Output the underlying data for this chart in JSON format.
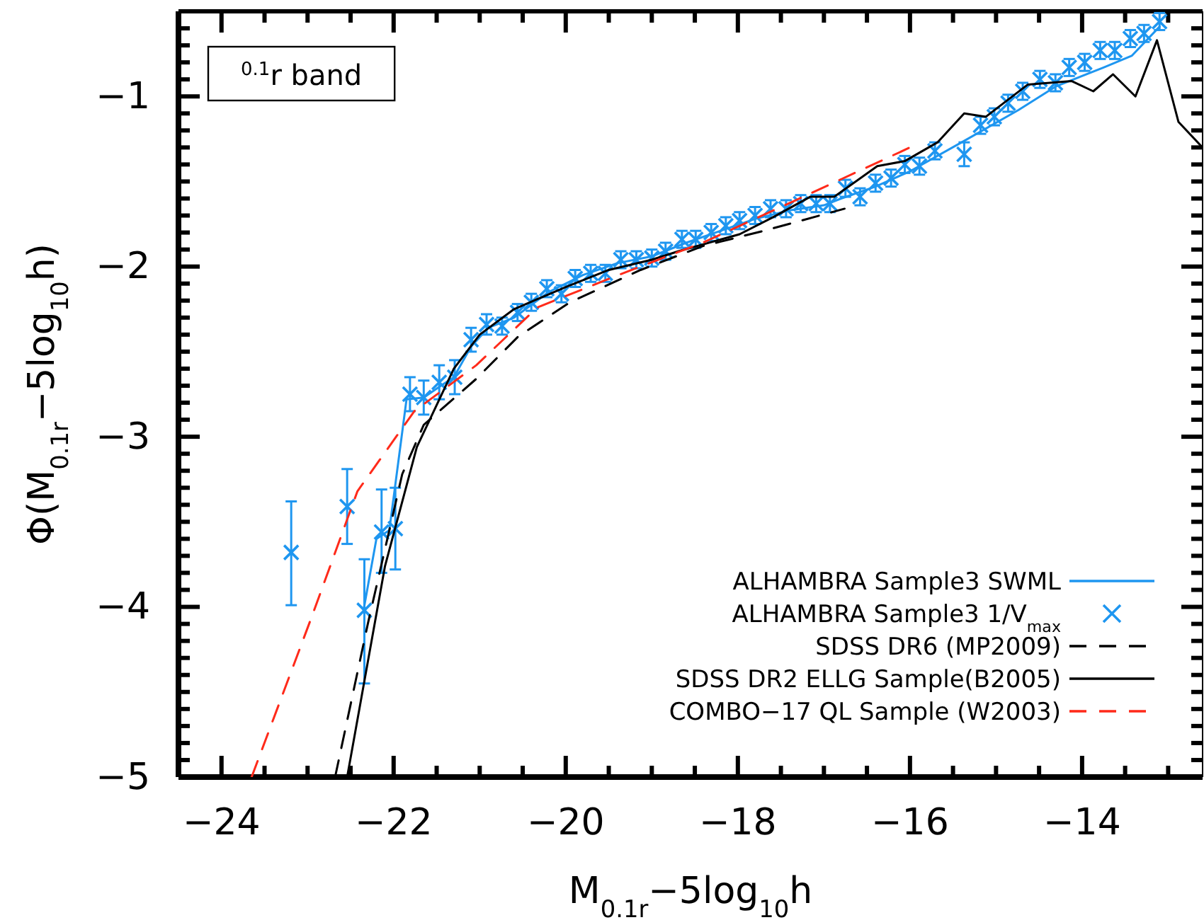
{
  "chart_data": {
    "type": "line",
    "xlabel": "M$_{0.1r}$−5log$_{10}$h",
    "ylabel": "Φ(M$_{0.1r}$−5log$_{10}$h)",
    "annotations": [
      "$^{0.1}$r band"
    ],
    "xlim": [
      -24.5,
      -12.6
    ],
    "ylim": [
      -5,
      -0.5
    ],
    "xticks": [
      {
        "value": -24.5,
        "label": null
      },
      -24,
      {
        "value": -23.5,
        "label": null
      },
      {
        "value": -23,
        "label": null
      },
      {
        "value": -22.5,
        "label": null
      },
      -22,
      {
        "value": -21.5,
        "label": null
      },
      {
        "value": -21,
        "label": null
      },
      {
        "value": -20.5,
        "label": null
      },
      -20,
      {
        "value": -19.5,
        "label": null
      },
      {
        "value": -19,
        "label": null
      },
      {
        "value": -18.5,
        "label": null
      },
      -18,
      {
        "value": -17.5,
        "label": null
      },
      {
        "value": -17,
        "label": null
      },
      {
        "value": -16.5,
        "label": null
      },
      -16,
      {
        "value": -15.5,
        "label": null
      },
      {
        "value": -15,
        "label": null
      },
      {
        "value": -14.5,
        "label": null
      },
      -14,
      {
        "value": -13.5,
        "label": null
      },
      {
        "value": -13,
        "label": null
      }
    ],
    "yticks": [
      -5,
      {
        "value": -4.9,
        "label": null
      },
      {
        "value": -4.8,
        "label": null
      },
      {
        "value": -4.7,
        "label": null
      },
      {
        "value": -4.6,
        "label": null
      },
      {
        "value": -4.5,
        "label": null
      },
      {
        "value": -4.4,
        "label": null
      },
      {
        "value": -4.3,
        "label": null
      },
      {
        "value": -4.2,
        "label": null
      },
      {
        "value": -4.1,
        "label": null
      },
      -4,
      {
        "value": -3.9,
        "label": null
      },
      {
        "value": -3.8,
        "label": null
      },
      {
        "value": -3.7,
        "label": null
      },
      {
        "value": -3.6,
        "label": null
      },
      {
        "value": -3.5,
        "label": null
      },
      {
        "value": -3.4,
        "label": null
      },
      {
        "value": -3.3,
        "label": null
      },
      {
        "value": -3.2,
        "label": null
      },
      {
        "value": -3.1,
        "label": null
      },
      -3,
      {
        "value": -2.9,
        "label": null
      },
      {
        "value": -2.8,
        "label": null
      },
      {
        "value": -2.7,
        "label": null
      },
      {
        "value": -2.6,
        "label": null
      },
      {
        "value": -2.5,
        "label": null
      },
      {
        "value": -2.4,
        "label": null
      },
      {
        "value": -2.3,
        "label": null
      },
      {
        "value": -2.2,
        "label": null
      },
      {
        "value": -2.1,
        "label": null
      },
      -2,
      {
        "value": -1.9,
        "label": null
      },
      {
        "value": -1.8,
        "label": null
      },
      {
        "value": -1.7,
        "label": null
      },
      {
        "value": -1.6,
        "label": null
      },
      {
        "value": -1.5,
        "label": null
      },
      {
        "value": -1.4,
        "label": null
      },
      {
        "value": -1.3,
        "label": null
      },
      {
        "value": -1.2,
        "label": null
      },
      {
        "value": -1.1,
        "label": null
      },
      -1,
      {
        "value": -0.9,
        "label": null
      },
      {
        "value": -0.8,
        "label": null
      },
      {
        "value": -0.7,
        "label": null
      },
      {
        "value": -0.6,
        "label": null
      }
    ],
    "grid": false,
    "legend": "bottom right",
    "series": [
      {
        "name": "ALHAMBRA Sample3 SWML",
        "color": "#1e96f0",
        "line_style": "solid",
        "x": [
          -22.35,
          -22.2,
          -22.05,
          -21.85,
          -21.65,
          -21.45,
          -21.3,
          -21.1,
          -20.9,
          -20.6,
          -20.2,
          -19.8,
          -19.4,
          -19.0,
          -18.6,
          -18.2,
          -17.8,
          -17.4,
          -17.0,
          -16.8,
          -16.4,
          -16.0,
          -15.4,
          -14.74,
          -14.3,
          -13.75,
          -13.42,
          -13.1
        ],
        "values": [
          -4.02,
          -3.6,
          -3.55,
          -2.78,
          -2.77,
          -2.7,
          -2.65,
          -2.47,
          -2.36,
          -2.3,
          -2.15,
          -2.05,
          -1.98,
          -1.94,
          -1.86,
          -1.79,
          -1.72,
          -1.67,
          -1.64,
          -1.6,
          -1.53,
          -1.44,
          -1.27,
          -1.08,
          -0.94,
          -0.83,
          -0.76,
          -0.59
        ]
      },
      {
        "name": "ALHAMBRA Sample3 1/V$_{max}$",
        "type": "scatter",
        "marker": "cross",
        "color": "#1e96f0",
        "x": [
          -23.19,
          -22.54,
          -22.34,
          -22.14,
          -21.98,
          -21.81,
          -21.65,
          -21.47,
          -21.29,
          -21.1,
          -20.92,
          -20.74,
          -20.56,
          -20.4,
          -20.22,
          -20.05,
          -19.89,
          -19.71,
          -19.54,
          -19.36,
          -19.18,
          -19.0,
          -18.84,
          -18.65,
          -18.49,
          -18.31,
          -18.14,
          -17.98,
          -17.8,
          -17.62,
          -17.44,
          -17.27,
          -17.09,
          -16.93,
          -16.75,
          -16.58,
          -16.4,
          -16.22,
          -16.06,
          -15.89,
          -15.71,
          -15.37,
          -15.18,
          -15.02,
          -14.86,
          -14.69,
          -14.49,
          -14.31,
          -14.15,
          -13.97,
          -13.79,
          -13.62,
          -13.44,
          -13.28,
          -13.1
        ],
        "values": [
          -3.68,
          -3.41,
          -4.02,
          -3.56,
          -3.54,
          -2.75,
          -2.77,
          -2.68,
          -2.65,
          -2.43,
          -2.34,
          -2.35,
          -2.27,
          -2.21,
          -2.13,
          -2.16,
          -2.07,
          -2.04,
          -2.04,
          -1.96,
          -1.96,
          -1.95,
          -1.91,
          -1.84,
          -1.84,
          -1.8,
          -1.76,
          -1.73,
          -1.7,
          -1.66,
          -1.66,
          -1.63,
          -1.63,
          -1.63,
          -1.54,
          -1.59,
          -1.51,
          -1.48,
          -1.4,
          -1.41,
          -1.32,
          -1.34,
          -1.17,
          -1.12,
          -1.04,
          -0.97,
          -0.9,
          -0.92,
          -0.83,
          -0.8,
          -0.73,
          -0.73,
          -0.66,
          -0.63,
          -0.56
        ],
        "errors": [
          [
            -3.99,
            -3.38
          ],
          [
            -3.63,
            -3.19
          ],
          [
            -4.45,
            -3.72
          ],
          [
            -3.8,
            -3.31
          ],
          [
            -3.78,
            -3.3
          ],
          0.1,
          0.1,
          0.1,
          0.1,
          0.07,
          0.06,
          0.05,
          0.05,
          0.05,
          0.05,
          0.05,
          0.05,
          0.05,
          0.05,
          0.05,
          0.05,
          0.05,
          0.05,
          0.05,
          0.05,
          0.05,
          0.05,
          0.05,
          0.05,
          0.05,
          0.05,
          0.05,
          0.05,
          0.05,
          0.05,
          0.05,
          0.05,
          0.05,
          0.05,
          0.05,
          0.05,
          0.07,
          0.05,
          0.05,
          0.05,
          0.05,
          0.05,
          0.05,
          0.05,
          0.05,
          0.05,
          0.05,
          0.05,
          0.05,
          0.05
        ]
      },
      {
        "name": "SDSS DR6 (MP2009)",
        "color": "#000000",
        "line_style": "dashed",
        "x": [
          -22.68,
          -22.3,
          -21.9,
          -21.65,
          -21.04,
          -20.55,
          -19.95,
          -19.13,
          -18.41,
          -17.7,
          -16.76
        ],
        "values": [
          -5.0,
          -4.1,
          -3.22,
          -2.93,
          -2.66,
          -2.41,
          -2.21,
          -2.02,
          -1.88,
          -1.79,
          -1.66
        ]
      },
      {
        "name": "SDSS DR2 ELLG Sample(B2005)",
        "color": "#000000",
        "line_style": "solid",
        "x": [
          -22.54,
          -22.1,
          -21.73,
          -21.3,
          -21.0,
          -20.6,
          -20.0,
          -19.5,
          -19.0,
          -18.69,
          -17.98,
          -17.59,
          -17.16,
          -16.88,
          -16.38,
          -16.06,
          -15.68,
          -15.37,
          -15.12,
          -14.63,
          -14.12,
          -13.87,
          -13.64,
          -13.38,
          -13.13,
          -12.88,
          -12.6
        ],
        "values": [
          -5.0,
          -3.76,
          -3.06,
          -2.6,
          -2.4,
          -2.25,
          -2.12,
          -2.02,
          -1.96,
          -1.91,
          -1.81,
          -1.71,
          -1.59,
          -1.59,
          -1.41,
          -1.38,
          -1.27,
          -1.1,
          -1.12,
          -0.93,
          -0.91,
          -0.97,
          -0.87,
          -1.0,
          -0.67,
          -1.15,
          -1.3
        ]
      },
      {
        "name": "COMBO−17 QL Sample (W2003)",
        "color": "#ff2a1a",
        "line_style": "dashed",
        "x": [
          -23.65,
          -22.96,
          -22.42,
          -21.76,
          -21.04,
          -20.33,
          -19.39,
          -18.41,
          -17.37,
          -16.0
        ],
        "values": [
          -5.0,
          -4.07,
          -3.32,
          -2.85,
          -2.58,
          -2.24,
          -2.05,
          -1.86,
          -1.62,
          -1.3
        ]
      }
    ]
  }
}
